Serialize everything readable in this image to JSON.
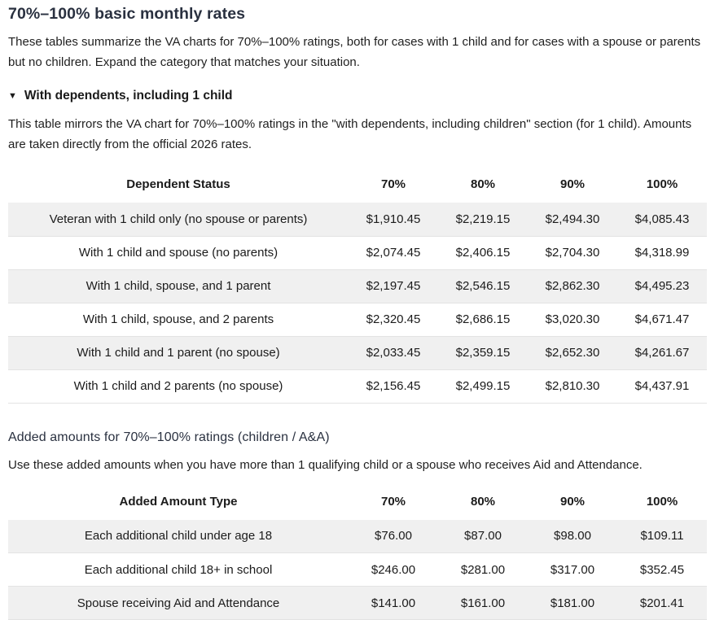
{
  "page": {
    "title": "70%–100% basic monthly rates",
    "intro": "These tables summarize the VA charts for 70%–100% ratings, both for cases with 1 child and for cases with a spouse or parents but no children. Expand the category that matches your situation."
  },
  "section1": {
    "toggle_icon": "▼",
    "heading": "With dependents, including 1 child",
    "description": "This table mirrors the VA chart for 70%–100% ratings in the \"with dependents, including children\" section (for 1 child). Amounts are taken directly from the official 2026 rates.",
    "table": {
      "headers": [
        "Dependent Status",
        "70%",
        "80%",
        "90%",
        "100%"
      ],
      "rows": [
        [
          "Veteran with 1 child only (no spouse or parents)",
          "$1,910.45",
          "$2,219.15",
          "$2,494.30",
          "$4,085.43"
        ],
        [
          "With 1 child and spouse (no parents)",
          "$2,074.45",
          "$2,406.15",
          "$2,704.30",
          "$4,318.99"
        ],
        [
          "With 1 child, spouse, and 1 parent",
          "$2,197.45",
          "$2,546.15",
          "$2,862.30",
          "$4,495.23"
        ],
        [
          "With 1 child, spouse, and 2 parents",
          "$2,320.45",
          "$2,686.15",
          "$3,020.30",
          "$4,671.47"
        ],
        [
          "With 1 child and 1 parent (no spouse)",
          "$2,033.45",
          "$2,359.15",
          "$2,652.30",
          "$4,261.67"
        ],
        [
          "With 1 child and 2 parents (no spouse)",
          "$2,156.45",
          "$2,499.15",
          "$2,810.30",
          "$4,437.91"
        ]
      ]
    }
  },
  "section2": {
    "heading": "Added amounts for 70%–100% ratings (children / A&A)",
    "description": "Use these added amounts when you have more than 1 qualifying child or a spouse who receives Aid and Attendance.",
    "table": {
      "headers": [
        "Added Amount Type",
        "70%",
        "80%",
        "90%",
        "100%"
      ],
      "rows": [
        [
          "Each additional child under age 18",
          "$76.00",
          "$87.00",
          "$98.00",
          "$109.11"
        ],
        [
          "Each additional child 18+ in school",
          "$246.00",
          "$281.00",
          "$317.00",
          "$352.45"
        ],
        [
          "Spouse receiving Aid and Attendance",
          "$141.00",
          "$161.00",
          "$181.00",
          "$201.41"
        ]
      ]
    }
  },
  "colors": {
    "heading_text": "#2a3140",
    "body_text": "#1b1b1b",
    "row_stripe": "#f0f0f0",
    "row_border": "#e3e3e3"
  }
}
